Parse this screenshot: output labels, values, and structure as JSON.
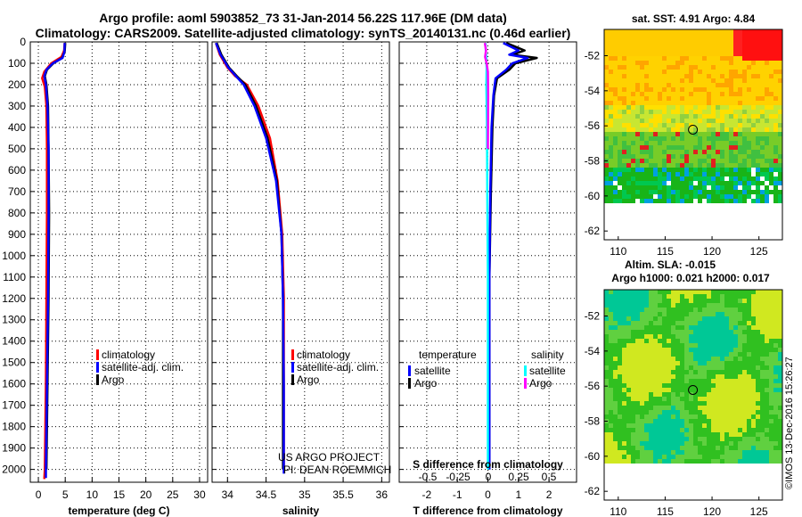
{
  "title": {
    "line1": "Argo profile: aoml 5903852_73 31-Jan-2014 56.22S 117.96E (DM data)",
    "line2": "Climatology: CARS2009. Satellite-adjusted climatology: synTS_20140131.nc (0.46d earlier)"
  },
  "colors": {
    "climatology": "#ff0000",
    "satellite": "#0000ff",
    "argo": "#000000",
    "sat_t": "#0000ff",
    "sat_s": "#00ffff",
    "argo_s": "#ff00ff"
  },
  "chart_data": [
    {
      "id": "temperature",
      "type": "line",
      "xlabel": "temperature (deg C)",
      "ylabel": "",
      "xlim": [
        -1.5,
        31.5
      ],
      "ylim": [
        2060,
        0
      ],
      "xticks": [
        0,
        5,
        10,
        15,
        20,
        25,
        30
      ],
      "xtick_labels": [
        "0",
        "5",
        "10",
        "15",
        "20",
        "25",
        "30"
      ],
      "yticks": [
        0,
        100,
        200,
        300,
        400,
        500,
        600,
        700,
        800,
        900,
        1000,
        1100,
        1200,
        1300,
        1400,
        1500,
        1600,
        1700,
        1800,
        1900,
        2000
      ],
      "ytick_labels": [
        "0",
        "100",
        "200",
        "300",
        "400",
        "500",
        "600",
        "700",
        "800",
        "900",
        "1000",
        "1100",
        "1200",
        "1300",
        "1400",
        "1500",
        "1600",
        "1700",
        "1800",
        "1900",
        "2000"
      ],
      "legend": [
        "climatology",
        "satellite-adj. clim.",
        "Argo"
      ],
      "series": [
        {
          "name": "climatology",
          "color": "#ff0000",
          "points": [
            [
              4.9,
              5
            ],
            [
              4.8,
              40
            ],
            [
              4.3,
              70
            ],
            [
              2.4,
              100
            ],
            [
              1.1,
              140
            ],
            [
              0.7,
              170
            ],
            [
              1.2,
              210
            ],
            [
              1.5,
              300
            ],
            [
              1.6,
              500
            ],
            [
              1.6,
              800
            ],
            [
              1.5,
              1200
            ],
            [
              1.4,
              1600
            ],
            [
              1.2,
              2000
            ],
            [
              1.1,
              2045
            ]
          ]
        },
        {
          "name": "Argo",
          "color": "#000000",
          "points": [
            [
              5.0,
              5
            ],
            [
              4.9,
              45
            ],
            [
              4.4,
              75
            ],
            [
              2.8,
              100
            ],
            [
              1.6,
              130
            ],
            [
              1.2,
              160
            ],
            [
              1.5,
              200
            ],
            [
              1.8,
              300
            ],
            [
              1.9,
              500
            ],
            [
              2.0,
              800
            ],
            [
              1.9,
              1200
            ],
            [
              1.7,
              1600
            ],
            [
              1.5,
              2000
            ]
          ]
        },
        {
          "name": "satellite-adj. clim.",
          "color": "#0000ff",
          "points": [
            [
              4.9,
              5
            ],
            [
              4.85,
              45
            ],
            [
              4.5,
              75
            ],
            [
              2.7,
              100
            ],
            [
              1.5,
              130
            ],
            [
              1.1,
              160
            ],
            [
              1.4,
              200
            ],
            [
              1.7,
              300
            ],
            [
              1.9,
              500
            ],
            [
              1.9,
              800
            ],
            [
              1.8,
              1200
            ],
            [
              1.6,
              1600
            ],
            [
              1.4,
              2000
            ],
            [
              1.4,
              2040
            ]
          ]
        }
      ]
    },
    {
      "id": "salinity",
      "type": "line",
      "xlabel": "salinity",
      "ylabel": "",
      "xlim": [
        33.8,
        36.1
      ],
      "ylim": [
        2060,
        0
      ],
      "xticks": [
        34,
        34.5,
        35,
        35.5,
        36
      ],
      "xtick_labels": [
        "34",
        "34.5",
        "35",
        "35.5",
        "36"
      ],
      "legend": [
        "climatology",
        "satellite-adj. clim.",
        "Argo"
      ],
      "series": [
        {
          "name": "climatology",
          "color": "#ff0000",
          "points": [
            [
              33.85,
              5
            ],
            [
              33.9,
              60
            ],
            [
              34.0,
              120
            ],
            [
              34.1,
              160
            ],
            [
              34.25,
              200
            ],
            [
              34.4,
              300
            ],
            [
              34.55,
              450
            ],
            [
              34.65,
              650
            ],
            [
              34.71,
              900
            ],
            [
              34.73,
              1200
            ],
            [
              34.73,
              1600
            ],
            [
              34.73,
              2000
            ]
          ]
        },
        {
          "name": "Argo",
          "color": "#000000",
          "points": [
            [
              33.86,
              5
            ],
            [
              33.92,
              60
            ],
            [
              34.02,
              120
            ],
            [
              34.12,
              160
            ],
            [
              34.23,
              200
            ],
            [
              34.37,
              300
            ],
            [
              34.52,
              450
            ],
            [
              34.64,
              650
            ],
            [
              34.7,
              900
            ],
            [
              34.72,
              1200
            ],
            [
              34.72,
              1600
            ],
            [
              34.72,
              2000
            ]
          ]
        },
        {
          "name": "satellite-adj. clim.",
          "color": "#0000ff",
          "points": [
            [
              33.85,
              5
            ],
            [
              33.91,
              60
            ],
            [
              34.01,
              120
            ],
            [
              34.11,
              160
            ],
            [
              34.21,
              200
            ],
            [
              34.35,
              300
            ],
            [
              34.5,
              450
            ],
            [
              34.63,
              650
            ],
            [
              34.7,
              900
            ],
            [
              34.72,
              1200
            ],
            [
              34.73,
              1600
            ],
            [
              34.73,
              2020
            ]
          ]
        }
      ]
    },
    {
      "id": "difference",
      "type": "line",
      "xlabel": "T difference from climatology",
      "top_label": "S difference from climatology",
      "xlim": [
        -2.9,
        2.9
      ],
      "ylim": [
        2060,
        0
      ],
      "xticks": [
        -2,
        -1,
        0,
        1,
        2
      ],
      "xtick_labels": [
        "-2",
        "-1",
        "0",
        "1",
        "2"
      ],
      "sticks": [
        -0.5,
        -0.25,
        0,
        0.25,
        0.5
      ],
      "stick_labels": [
        "-0.5",
        "-0.25",
        "0",
        "0.25",
        "0.5"
      ],
      "legend_t_title": "temperature",
      "legend_s_title": "salinity",
      "legend_t": [
        "satellite",
        "Argo"
      ],
      "legend_s": [
        "satellite",
        "Argo"
      ],
      "series": [
        {
          "name": "Argo T",
          "color": "#000000",
          "points": [
            [
              0.6,
              5
            ],
            [
              1.2,
              40
            ],
            [
              0.8,
              60
            ],
            [
              1.6,
              75
            ],
            [
              0.9,
              100
            ],
            [
              0.7,
              130
            ],
            [
              0.3,
              170
            ],
            [
              0.2,
              250
            ],
            [
              0.15,
              400
            ],
            [
              0.1,
              700
            ],
            [
              0.05,
              1100
            ],
            [
              0.05,
              1500
            ],
            [
              0.05,
              2000
            ]
          ]
        },
        {
          "name": "satellite T",
          "color": "#0000ff",
          "points": [
            [
              0.5,
              5
            ],
            [
              1.0,
              40
            ],
            [
              0.7,
              60
            ],
            [
              1.3,
              75
            ],
            [
              0.8,
              100
            ],
            [
              0.6,
              130
            ],
            [
              0.25,
              170
            ],
            [
              0.18,
              250
            ],
            [
              0.12,
              400
            ],
            [
              0.08,
              700
            ],
            [
              0.05,
              1100
            ],
            [
              0.05,
              1500
            ],
            [
              0.05,
              2000
            ]
          ]
        },
        {
          "name": "satellite S",
          "color": "#00ffff",
          "points": [
            [
              -0.08,
              5
            ],
            [
              -0.06,
              60
            ],
            [
              -0.04,
              120
            ],
            [
              -0.05,
              200
            ],
            [
              -0.03,
              400
            ],
            [
              -0.02,
              700
            ],
            [
              0.0,
              1100
            ],
            [
              0.0,
              1500
            ],
            [
              0.0,
              2000
            ]
          ]
        },
        {
          "name": "Argo S",
          "color": "#ff00ff",
          "points": [
            [
              -0.1,
              5
            ],
            [
              -0.06,
              40
            ],
            [
              -0.09,
              70
            ],
            [
              -0.04,
              100
            ],
            [
              0.0,
              140
            ],
            [
              0.01,
              250
            ],
            [
              0.0,
              500
            ]
          ]
        }
      ]
    },
    {
      "id": "sst_map",
      "type": "heatmap",
      "title": "sat. SST: 4.91 Argo: 4.84",
      "xlim": [
        108.5,
        127.5
      ],
      "ylim": [
        -62.5,
        -50.5
      ],
      "xticks": [
        110,
        115,
        120,
        125
      ],
      "xtick_labels": [
        "110",
        "115",
        "120",
        "125"
      ],
      "yticks": [
        -52,
        -54,
        -56,
        -58,
        -60,
        -62
      ],
      "ytick_labels": [
        "-52",
        "-54",
        "-56",
        "-58",
        "-60",
        "-62"
      ],
      "profile_location": [
        117.96,
        -56.22
      ]
    },
    {
      "id": "sla_map",
      "type": "heatmap",
      "title": "Altim. SLA: -0.015",
      "subtitle": "Argo h1000: 0.021 h2000: 0.017",
      "xlim": [
        108.5,
        127.5
      ],
      "ylim": [
        -62.5,
        -50.5
      ],
      "xticks": [
        110,
        115,
        120,
        125
      ],
      "xtick_labels": [
        "110",
        "115",
        "120",
        "125"
      ],
      "yticks": [
        -52,
        -54,
        -56,
        -58,
        -60,
        -62
      ],
      "ytick_labels": [
        "-52",
        "-54",
        "-56",
        "-58",
        "-60",
        "-62"
      ],
      "profile_location": [
        117.96,
        -56.22
      ]
    }
  ],
  "credits": {
    "line1": "US ARGO PROJECT",
    "line2": "PI: DEAN ROEMMICH"
  },
  "stamp": "©IMOS 13-Dec-2016 15:26:27"
}
